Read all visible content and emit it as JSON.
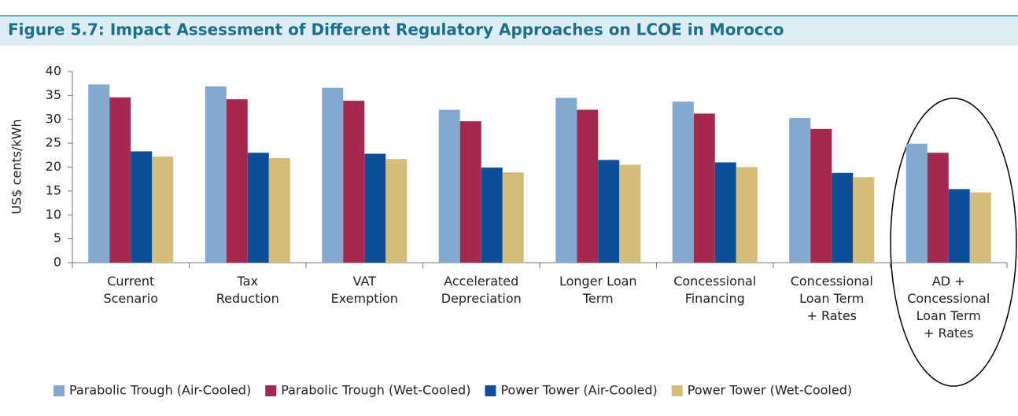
{
  "chart_data": {
    "type": "bar",
    "title": "Figure 5.7: Impact Assessment of Different Regulatory Approaches on LCOE in Morocco",
    "ylabel": "US$ cents/kWh",
    "categories": [
      "Current\nScenario",
      "Tax\nReduction",
      "VAT\nExemption",
      "Accelerated\nDepreciation",
      "Longer Loan\nTerm",
      "Concessional\nFinancing",
      "Concessional\nLoan Term\n+ Rates",
      "AD +\nConcessional\nLoan Term\n+ Rates"
    ],
    "series": [
      {
        "name": "Parabolic Trough (Air-Cooled)",
        "color": "#84a9cf",
        "values": [
          37.3,
          36.9,
          36.6,
          32.0,
          34.5,
          33.7,
          30.3,
          24.9
        ]
      },
      {
        "name": "Parabolic Trough (Wet-Cooled)",
        "color": "#a5294f",
        "values": [
          34.6,
          34.2,
          33.9,
          29.6,
          32.0,
          31.2,
          28.0,
          23.0
        ]
      },
      {
        "name": "Power Tower (Air-Cooled)",
        "color": "#0c4f98",
        "values": [
          23.3,
          23.0,
          22.8,
          19.9,
          21.5,
          21.0,
          18.8,
          15.4
        ]
      },
      {
        "name": "Power Tower (Wet-Cooled)",
        "color": "#d4bd7a",
        "values": [
          22.2,
          21.9,
          21.7,
          18.9,
          20.5,
          20.0,
          17.9,
          14.7
        ]
      }
    ],
    "ylim": [
      0,
      40
    ],
    "yticks": [
      0,
      5,
      10,
      15,
      20,
      25,
      30,
      35,
      40
    ],
    "grid": false,
    "legend": "bottom"
  }
}
